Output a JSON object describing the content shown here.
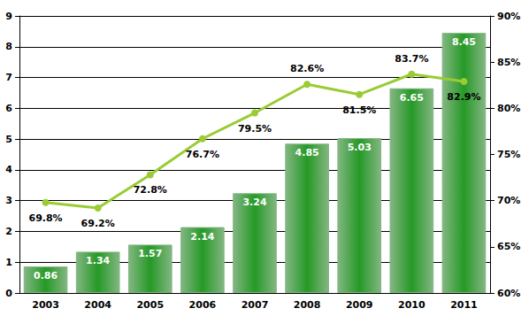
{
  "chart_data": {
    "type": "bar",
    "categories": [
      "2003",
      "2004",
      "2005",
      "2006",
      "2007",
      "2008",
      "2009",
      "2010",
      "2011"
    ],
    "series": [
      {
        "type": "bar",
        "color": "#1e7b1e",
        "values": [
          0.86,
          1.34,
          1.57,
          2.14,
          3.24,
          4.85,
          5.03,
          6.65,
          8.45
        ]
      },
      {
        "type": "line",
        "axis": "y2",
        "color": "#99cc33",
        "marker": "circle",
        "values": [
          69.8,
          69.2,
          72.8,
          76.7,
          79.5,
          82.6,
          81.5,
          83.7,
          82.9
        ],
        "value_labels": [
          "69.8%",
          "69.2%",
          "72.8%",
          "76.7%",
          "79.5%",
          "82.6%",
          "81.5%",
          "83.7%",
          "82.9%"
        ]
      }
    ],
    "ylim": [
      0,
      9
    ],
    "yticks": [
      0,
      1,
      2,
      3,
      4,
      5,
      6,
      7,
      8,
      9
    ],
    "y2lim": [
      60,
      90
    ],
    "y2ticks": [
      {
        "value": 60,
        "label": "60%"
      },
      {
        "value": 65,
        "label": "65%"
      },
      {
        "value": 70,
        "label": "70%"
      },
      {
        "value": 75,
        "label": "75%"
      },
      {
        "value": 80,
        "label": "80%"
      },
      {
        "value": 85,
        "label": "85%"
      },
      {
        "value": 90,
        "label": "90%"
      }
    ],
    "grid": true,
    "data_labels": true
  }
}
